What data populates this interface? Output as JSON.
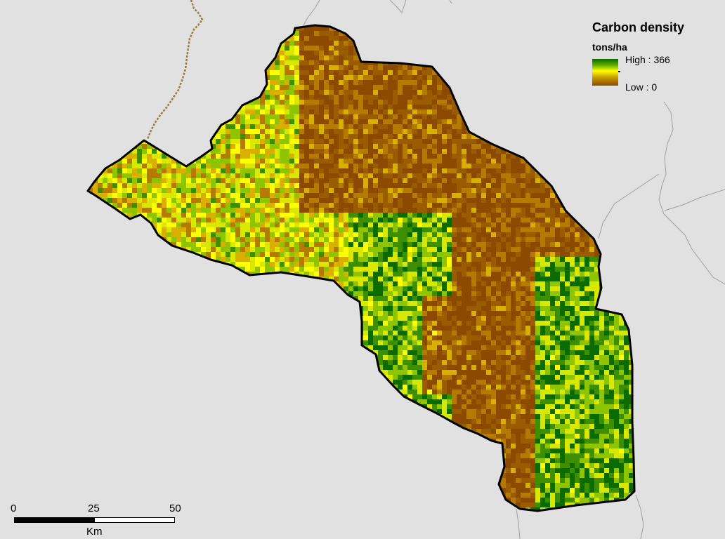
{
  "legend": {
    "title": "Carbon density",
    "unit": "tons/ha",
    "high_label": "High : 366",
    "low_label": "Low : 0",
    "high_value": 366,
    "low_value": 0,
    "ramp_colors": [
      "#0a6b00",
      "#5aa800",
      "#ffff00",
      "#c79a00",
      "#8b4a00"
    ]
  },
  "scale_bar": {
    "ticks": [
      "0",
      "25",
      "50"
    ],
    "unit": "Km"
  },
  "colors": {
    "background": "#e1e1e1",
    "boundary": "#000000",
    "neighbor_lines": "#a0a0a0"
  }
}
